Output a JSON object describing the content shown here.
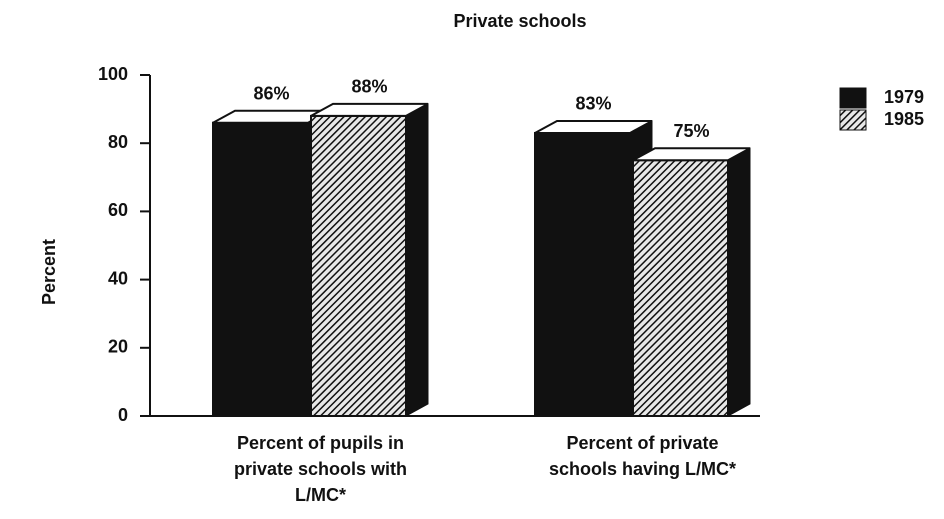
{
  "chart_data": {
    "type": "bar3d",
    "title": "Private schools",
    "ylabel": "Percent",
    "categories": [
      "Percent of pupils in private schools with L/MC*",
      "Percent of private schools having L/MC*"
    ],
    "series": [
      {
        "name": "1979",
        "color": "#111111",
        "values": [
          86,
          83
        ],
        "value_labels": [
          "86%",
          "83%"
        ]
      },
      {
        "name": "1985",
        "color": "#222222",
        "pattern": "hatch",
        "values": [
          88,
          75
        ],
        "value_labels": [
          "88%",
          "75%"
        ]
      }
    ],
    "ylim": [
      0,
      100
    ],
    "yticks": [
      0,
      20,
      40,
      60,
      80,
      100
    ],
    "legend": "upper right"
  }
}
